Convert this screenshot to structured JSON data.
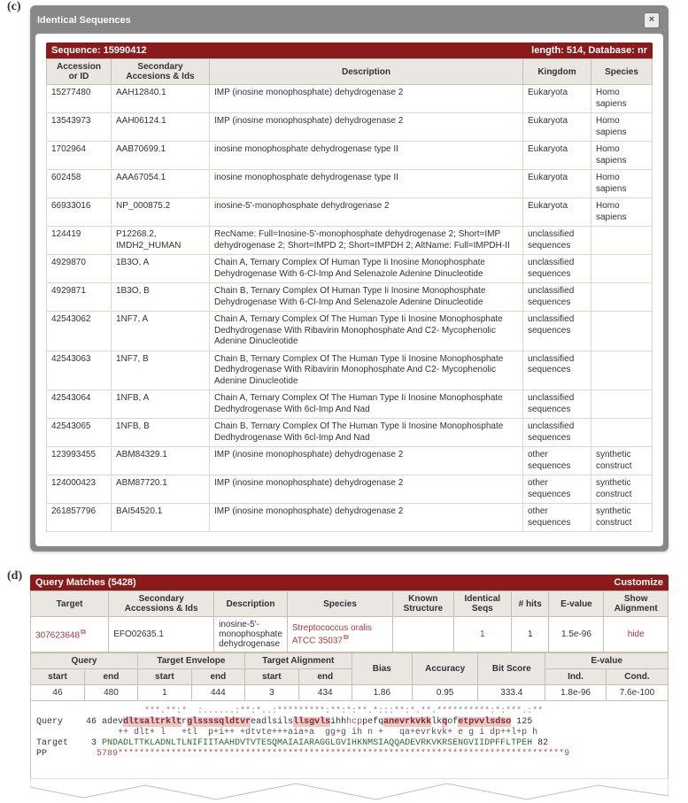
{
  "panel_c": {
    "label": "(c)",
    "title": "Identical Sequences",
    "close_tooltip": "Close",
    "seq_left": "Sequence: 15990412",
    "seq_right": "length: 514, Database: nr",
    "cols": {
      "c1": "Accession or ID",
      "c2": "Secondary Accesions & Ids",
      "c3": "Description",
      "c4": "Kingdom",
      "c5": "Species"
    },
    "rows": [
      {
        "acc": "15277480",
        "sec": "AAH12840.1",
        "desc": "IMP (inosine monophosphate) dehydrogenase 2",
        "king": "Eukaryota",
        "spec": "Homo sapiens"
      },
      {
        "acc": "13543973",
        "sec": "AAH06124.1",
        "desc": "IMP (inosine monophosphate) dehydrogenase 2",
        "king": "Eukaryota",
        "spec": "Homo sapiens"
      },
      {
        "acc": "1702964",
        "sec": "AAB70699.1",
        "desc": "inosine monophosphate dehydrogenase type II",
        "king": "Eukaryota",
        "spec": "Homo sapiens"
      },
      {
        "acc": "602458",
        "sec": "AAA67054.1",
        "desc": "inosine monophosphate dehydrogenase type II",
        "king": "Eukaryota",
        "spec": "Homo sapiens"
      },
      {
        "acc": "66933016",
        "sec": "NP_000875.2",
        "desc": "inosine-5'-monophosphate dehydrogenase 2",
        "king": "Eukaryota",
        "spec": "Homo sapiens"
      },
      {
        "acc": "124419",
        "sec": "P12268.2, IMDH2_HUMAN",
        "desc": "RecName: Full=Inosine-5'-monophosphate dehydrogenase 2; Short=IMP dehydrogenase 2; Short=IMPD 2; Short=IMPDH 2; AltName: Full=IMPDH-II",
        "king": "unclassified sequences",
        "spec": ""
      },
      {
        "acc": "4929870",
        "sec": "1B3O, A",
        "desc": "Chain A, Ternary Complex Of Human Type Ii Inosine Monophosphate Dehydrogenase With 6-Cl-Imp And Selenazole Adenine Dinucleotide",
        "king": "unclassified sequences",
        "spec": ""
      },
      {
        "acc": "4929871",
        "sec": "1B3O, B",
        "desc": "Chain B, Ternary Complex Of Human Type Ii Inosine Monophosphate Dehydrogenase With 6-Cl-Imp And Selenazole Adenine Dinucleotide",
        "king": "unclassified sequences",
        "spec": ""
      },
      {
        "acc": "42543062",
        "sec": "1NF7, A",
        "desc": "Chain A, Ternary Complex Of The Human Type Ii Inosine Monophosphate Dedhydrogenase With Ribavirin Monophosphate And C2- Mycophenolic Adenine Dinucleotide",
        "king": "unclassified sequences",
        "spec": ""
      },
      {
        "acc": "42543063",
        "sec": "1NF7, B",
        "desc": "Chain B, Ternary Complex Of The Human Type Ii Inosine Monophosphate Dedhydrogenase With Ribavirin Monophosphate And C2- Mycophenolic Adenine Dinucleotide",
        "king": "unclassified sequences",
        "spec": ""
      },
      {
        "acc": "42543064",
        "sec": "1NFB, A",
        "desc": "Chain A, Ternary Complex Of The Human Type Ii Inosine Monophosphate Dedhydrogenase With 6cl-Imp And Nad",
        "king": "unclassified sequences",
        "spec": ""
      },
      {
        "acc": "42543065",
        "sec": "1NFB, B",
        "desc": "Chain B, Ternary Complex Of The Human Type Ii Inosine Monophosphate Dedhydrogenase With 6cl-Imp And Nad",
        "king": "unclassified sequences",
        "spec": ""
      },
      {
        "acc": "123993455",
        "sec": "ABM84329.1",
        "desc": "IMP (inosine monophosphate) dehydrogenase 2",
        "king": "other sequences",
        "spec": "synthetic construct"
      },
      {
        "acc": "124000423",
        "sec": "ABM87720.1",
        "desc": "IMP (inosine monophosphate) dehydrogenase 2",
        "king": "other sequences",
        "spec": "synthetic construct"
      },
      {
        "acc": "261857796",
        "sec": "BAI54520.1",
        "desc": "IMP (inosine monophosphate) dehydrogenase 2",
        "king": "other sequences",
        "spec": "synthetic construct"
      }
    ]
  },
  "panel_d": {
    "label": "(d)",
    "header_left": "Query Matches (5428)",
    "header_right": "Customize",
    "h1": {
      "target": "Target",
      "sec": "Secondary Accessions & Ids",
      "desc": "Description",
      "species": "Species",
      "known": "Known Structure",
      "ids": "Identical Seqs",
      "hits": "# hits",
      "eval": "E-value",
      "show": "Show Alignment"
    },
    "row1": {
      "target": "307623648",
      "sec": "EFO02635.1",
      "desc": "inosine-5'-monophosphate dehydrogenase",
      "species": "Streptococcus oralis ATCC 35037",
      "known": "",
      "ids": "1",
      "hits": "1",
      "eval": "1.5e-96",
      "show": "hide"
    },
    "h2": {
      "query": "Query",
      "tenv": "Target Envelope",
      "talign": "Target Alignment",
      "bias": "Bias",
      "acc": "Accuracy",
      "bit": "Bit Score",
      "evalue": "E-value",
      "start": "start",
      "end": "end",
      "ind": "Ind.",
      "cond": "Cond."
    },
    "row2": {
      "qs": "46",
      "qe": "480",
      "tes": "1",
      "tee": "444",
      "tas": "3",
      "tae": "434",
      "bias": "1.86",
      "acc": "0.95",
      "bit": "333.4",
      "ind": "1.8e-96",
      "cond": "7.6e-100"
    },
    "aln": {
      "qlabel": "Query",
      "tlabel": "Target",
      "pplabel": "PP",
      "qstart": "46",
      "qend": "125",
      "tstart": "3",
      "tend": "82",
      "stars": "         ***.**:*  :......:**:*..:*********:**:*:**.*:::**:*.**.**********:*:***.:**",
      "qseq_pre": "adev",
      "qseq_hl1": "dltsaltrklt",
      "qseq_mid1": "r",
      "qseq_hl2": "glssssqldtvr",
      "qseq_mid2": "eadlsils",
      "qseq_hl3": "llsgvls",
      "qseq_mid3": "ihh",
      "qseq_gap": "hcp",
      "qseq_mid4": "pefq",
      "qseq_hl4": "anevrkvkk",
      "qseq_mid5": "lk",
      "qseq_hl5": "q",
      "qseq_mid6": "of",
      "qseq_hl6": "etpvvlsdso",
      "cons": "    ++ dlt+ l   +tl  p+i++ +dtvte+++aia+a  gg+g ih n +   qa+evrkvk+ e g i dp++l+p h",
      "tseq": "PNDADLTTKLADNLTLNIFIITAAHDVTVTESQMAIAIARAGGLGVIHKNMSIAQQADEVRKVKRSENGVIIDPFFLTPEH",
      "pp": "5789************************************************************************************9"
    }
  }
}
